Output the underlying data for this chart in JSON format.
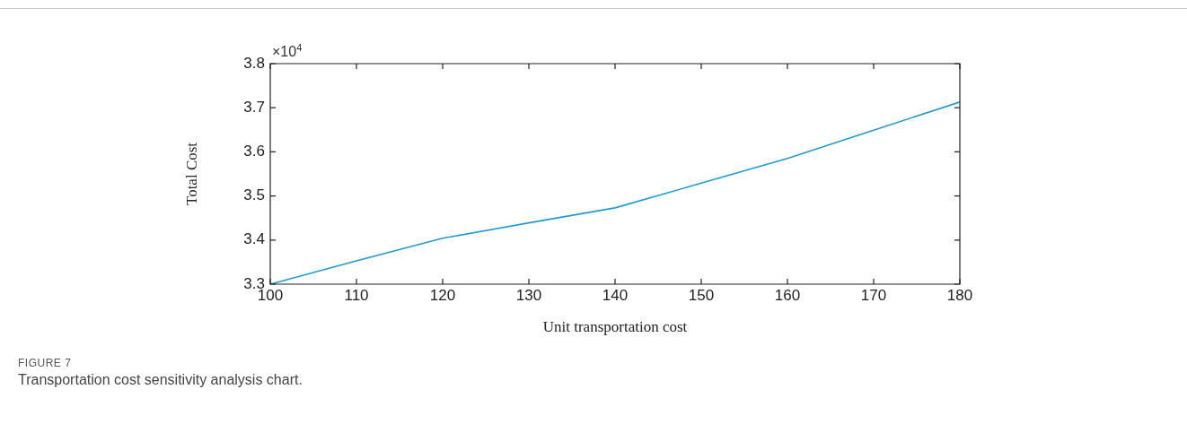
{
  "chart_data": {
    "type": "line",
    "xlabel": "Unit transportation cost",
    "ylabel": "Total Cost",
    "x": [
      100,
      110,
      120,
      130,
      140,
      150,
      160,
      170,
      180
    ],
    "series": [
      {
        "color": "#1f9bd7",
        "values": [
          3.3,
          3.353,
          3.404,
          3.439,
          3.473,
          3.529,
          3.585,
          3.649,
          3.713
        ]
      }
    ],
    "xlim": [
      100,
      180
    ],
    "xticks": [
      100,
      110,
      120,
      130,
      140,
      150,
      160,
      170,
      180
    ],
    "ylim": [
      3.3,
      3.8
    ],
    "yticks": [
      {
        "value": 3.3,
        "label": "3.3"
      },
      {
        "value": 3.4,
        "label": "3.4"
      },
      {
        "value": 3.5,
        "label": "3.5"
      },
      {
        "value": 3.6,
        "label": "3.6"
      },
      {
        "value": 3.7,
        "label": "3.7"
      },
      {
        "value": 3.8,
        "label": "3.8"
      }
    ],
    "grid": false,
    "legend": false,
    "marker": "none",
    "line_style": "solid",
    "annotations": [
      "×10$^{4}$",
      "FIGURE 7",
      "Transportation cost sensitivity analysis chart."
    ]
  }
}
